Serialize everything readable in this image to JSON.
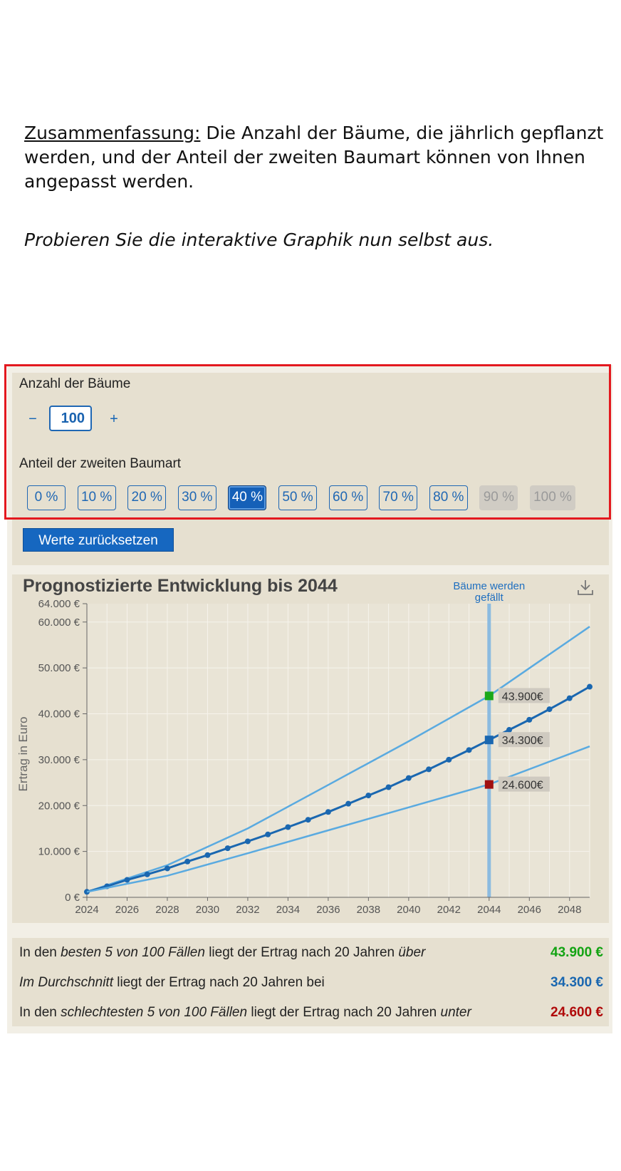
{
  "intro": {
    "heading": "Zusammenfassung:",
    "text": " Die Anzahl der Bäume, die jährlich gepflanzt werden, und der Anteil der zweiten Baumart können von Ihnen angepasst werden.",
    "prompt": "Probieren Sie die interaktive Graphik nun selbst aus."
  },
  "controls": {
    "trees_label": "Anzahl der Bäume",
    "minus": "−",
    "plus": "+",
    "trees_value": "100",
    "share_label": "Anteil der zweiten Baumart",
    "share_options": [
      {
        "label": "0 %",
        "state": "normal"
      },
      {
        "label": "10 %",
        "state": "normal"
      },
      {
        "label": "20 %",
        "state": "normal"
      },
      {
        "label": "30 %",
        "state": "normal"
      },
      {
        "label": "40 %",
        "state": "active"
      },
      {
        "label": "50 %",
        "state": "normal"
      },
      {
        "label": "60 %",
        "state": "normal"
      },
      {
        "label": "70 %",
        "state": "normal"
      },
      {
        "label": "80 %",
        "state": "normal"
      },
      {
        "label": "90 %",
        "state": "disabled"
      },
      {
        "label": "100 %",
        "state": "disabled"
      }
    ],
    "reset_label": "Werte zurücksetzen"
  },
  "chart_data": {
    "type": "line",
    "title": "Prognostizierte Entwicklung bis 2044",
    "ylabel": "Ertrag in Euro",
    "xlabel": "",
    "xlim": [
      2024,
      2049
    ],
    "ylim": [
      0,
      64000
    ],
    "x_ticks": [
      2024,
      2026,
      2028,
      2030,
      2032,
      2034,
      2036,
      2038,
      2040,
      2042,
      2044,
      2046,
      2048
    ],
    "y_ticks": [
      0,
      10000,
      20000,
      30000,
      40000,
      50000,
      60000,
      64000
    ],
    "y_tick_labels": [
      "0 €",
      "10.000 €",
      "20.000 €",
      "30.000 €",
      "40.000 €",
      "50.000 €",
      "60.000 €",
      "64.000 €"
    ],
    "grid": true,
    "marker_line": {
      "x": 2044,
      "label_line1": "Bäume werden",
      "label_line2": "gefällt"
    },
    "series": [
      {
        "values": [
          [
            2024,
            1200
          ],
          [
            2028,
            7000
          ],
          [
            2032,
            15000
          ],
          [
            2036,
            24500
          ],
          [
            2040,
            34000
          ],
          [
            2044,
            43900
          ],
          [
            2049,
            59000
          ]
        ],
        "color": "#5aaae0"
      },
      {
        "values": [
          [
            2024,
            1200
          ],
          [
            2025,
            2400
          ],
          [
            2026,
            3800
          ],
          [
            2027,
            5000
          ],
          [
            2028,
            6300
          ],
          [
            2029,
            7800
          ],
          [
            2030,
            9200
          ],
          [
            2031,
            10700
          ],
          [
            2032,
            12200
          ],
          [
            2033,
            13700
          ],
          [
            2034,
            15300
          ],
          [
            2035,
            16900
          ],
          [
            2036,
            18600
          ],
          [
            2037,
            20400
          ],
          [
            2038,
            22200
          ],
          [
            2039,
            24000
          ],
          [
            2040,
            26000
          ],
          [
            2041,
            27900
          ],
          [
            2042,
            30000
          ],
          [
            2043,
            32100
          ],
          [
            2044,
            34300
          ],
          [
            2045,
            36500
          ],
          [
            2046,
            38700
          ],
          [
            2047,
            41000
          ],
          [
            2048,
            43400
          ],
          [
            2049,
            45900
          ]
        ],
        "color": "#1a67b0",
        "markers": true
      },
      {
        "values": [
          [
            2024,
            1200
          ],
          [
            2028,
            4700
          ],
          [
            2032,
            9600
          ],
          [
            2036,
            14600
          ],
          [
            2040,
            19600
          ],
          [
            2044,
            24600
          ],
          [
            2049,
            32900
          ]
        ],
        "color": "#5aaae0"
      }
    ],
    "highlights": [
      {
        "x": 2044,
        "y": 43900,
        "label": "43.900€",
        "color": "#1aa81a"
      },
      {
        "x": 2044,
        "y": 34300,
        "label": "34.300€",
        "color": "#1a67b0"
      },
      {
        "x": 2044,
        "y": 24600,
        "label": "24.600€",
        "color": "#a01010"
      }
    ]
  },
  "results": [
    {
      "parts": [
        [
          "In den ",
          false
        ],
        [
          "besten 5 von 100 Fällen",
          true
        ],
        [
          " liegt der Ertrag nach 20 Jahren ",
          false
        ],
        [
          "über",
          true
        ]
      ],
      "value": "43.900 €",
      "color": "#13a313"
    },
    {
      "parts": [
        [
          "Im Durchschnitt",
          true
        ],
        [
          " liegt der Ertrag nach 20 Jahren bei",
          false
        ]
      ],
      "value": "34.300 €",
      "color": "#1a67b0"
    },
    {
      "parts": [
        [
          "In den ",
          false
        ],
        [
          "schlechtesten 5 von 100 Fällen",
          true
        ],
        [
          " liegt der Ertrag nach 20 Jahren ",
          false
        ],
        [
          "unter",
          true
        ]
      ],
      "value": "24.600 €",
      "color": "#b00a0a"
    }
  ]
}
